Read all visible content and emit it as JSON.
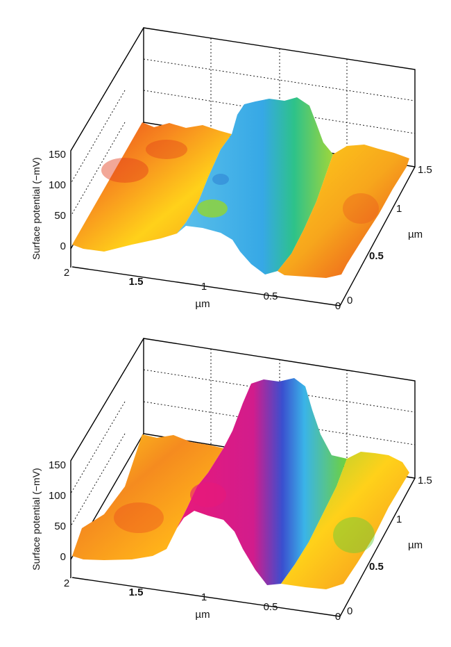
{
  "chart_data": [
    {
      "type": "surface3d",
      "ylabel": "Surface potential (−mV)",
      "zticks": [
        "0",
        "50",
        "100",
        "150"
      ],
      "zlim": [
        0,
        150
      ],
      "x_label": "µm",
      "x_ticks": [
        "2",
        "1.5",
        "1",
        "0.5",
        "0"
      ],
      "y_label": "µm",
      "y_ticks": [
        "0",
        "0.5",
        "1",
        "1.5"
      ],
      "colors": {
        "low": "#e8401c",
        "mid": "#ffd11a",
        "high": "#3fb5e8"
      },
      "profile": {
        "baseline": 45,
        "ridge_start": 1.05,
        "ridge_end": 0.55,
        "ridge_peak": 150,
        "ridge_base_left": 20
      }
    },
    {
      "type": "surface3d",
      "ylabel": "Surface potential (−mV)",
      "zticks": [
        "0",
        "50",
        "100",
        "150"
      ],
      "zlim": [
        0,
        150
      ],
      "x_label": "µm",
      "x_ticks": [
        "2",
        "1.5",
        "1",
        "0.5",
        "0"
      ],
      "y_label": "µm",
      "y_ticks": [
        "0",
        "0.5",
        "1",
        "1.5"
      ],
      "colors": {
        "low": "#ffb21a",
        "mid": "#5fcf3a",
        "high": "#e8197a"
      },
      "profile": {
        "baseline": 60,
        "ridge_start": 1.05,
        "ridge_end": 0.55,
        "ridge_peak": 180,
        "ridge_base_left": 10
      }
    }
  ]
}
